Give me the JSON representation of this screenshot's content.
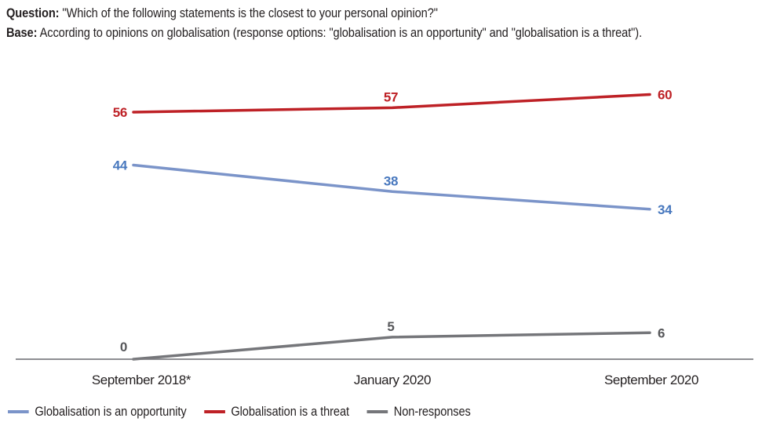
{
  "header": {
    "question_label": "Question:",
    "question_text": " \"Which of the following statements is the closest to your personal opinion?\"",
    "base_label": "Base:",
    "base_text": " According to opinions on globalisation (response options: \"globalisation is an opportunity\" and \"globalisation is a threat\")."
  },
  "chart_data": {
    "type": "line",
    "categories": [
      "September 2018*",
      "January 2020",
      "September 2020"
    ],
    "series": [
      {
        "name": "Globalisation is an opportunity",
        "values": [
          44,
          38,
          34
        ],
        "color": "#7B94C9",
        "label_color": "#4878BE"
      },
      {
        "name": "Globalisation is a threat",
        "values": [
          56,
          57,
          60
        ],
        "color": "#BE2126",
        "label_color": "#BE2126"
      },
      {
        "name": "Non-responses",
        "values": [
          0,
          5,
          6
        ],
        "color": "#75767A",
        "label_color": "#56575A"
      }
    ],
    "ylim": [
      0,
      65
    ],
    "grid": false,
    "value_labels_shown": true,
    "legend_position": "bottom",
    "axis_color": "#7D7E82",
    "text_color": "#231F20",
    "background_color": "#FFFFFF"
  }
}
